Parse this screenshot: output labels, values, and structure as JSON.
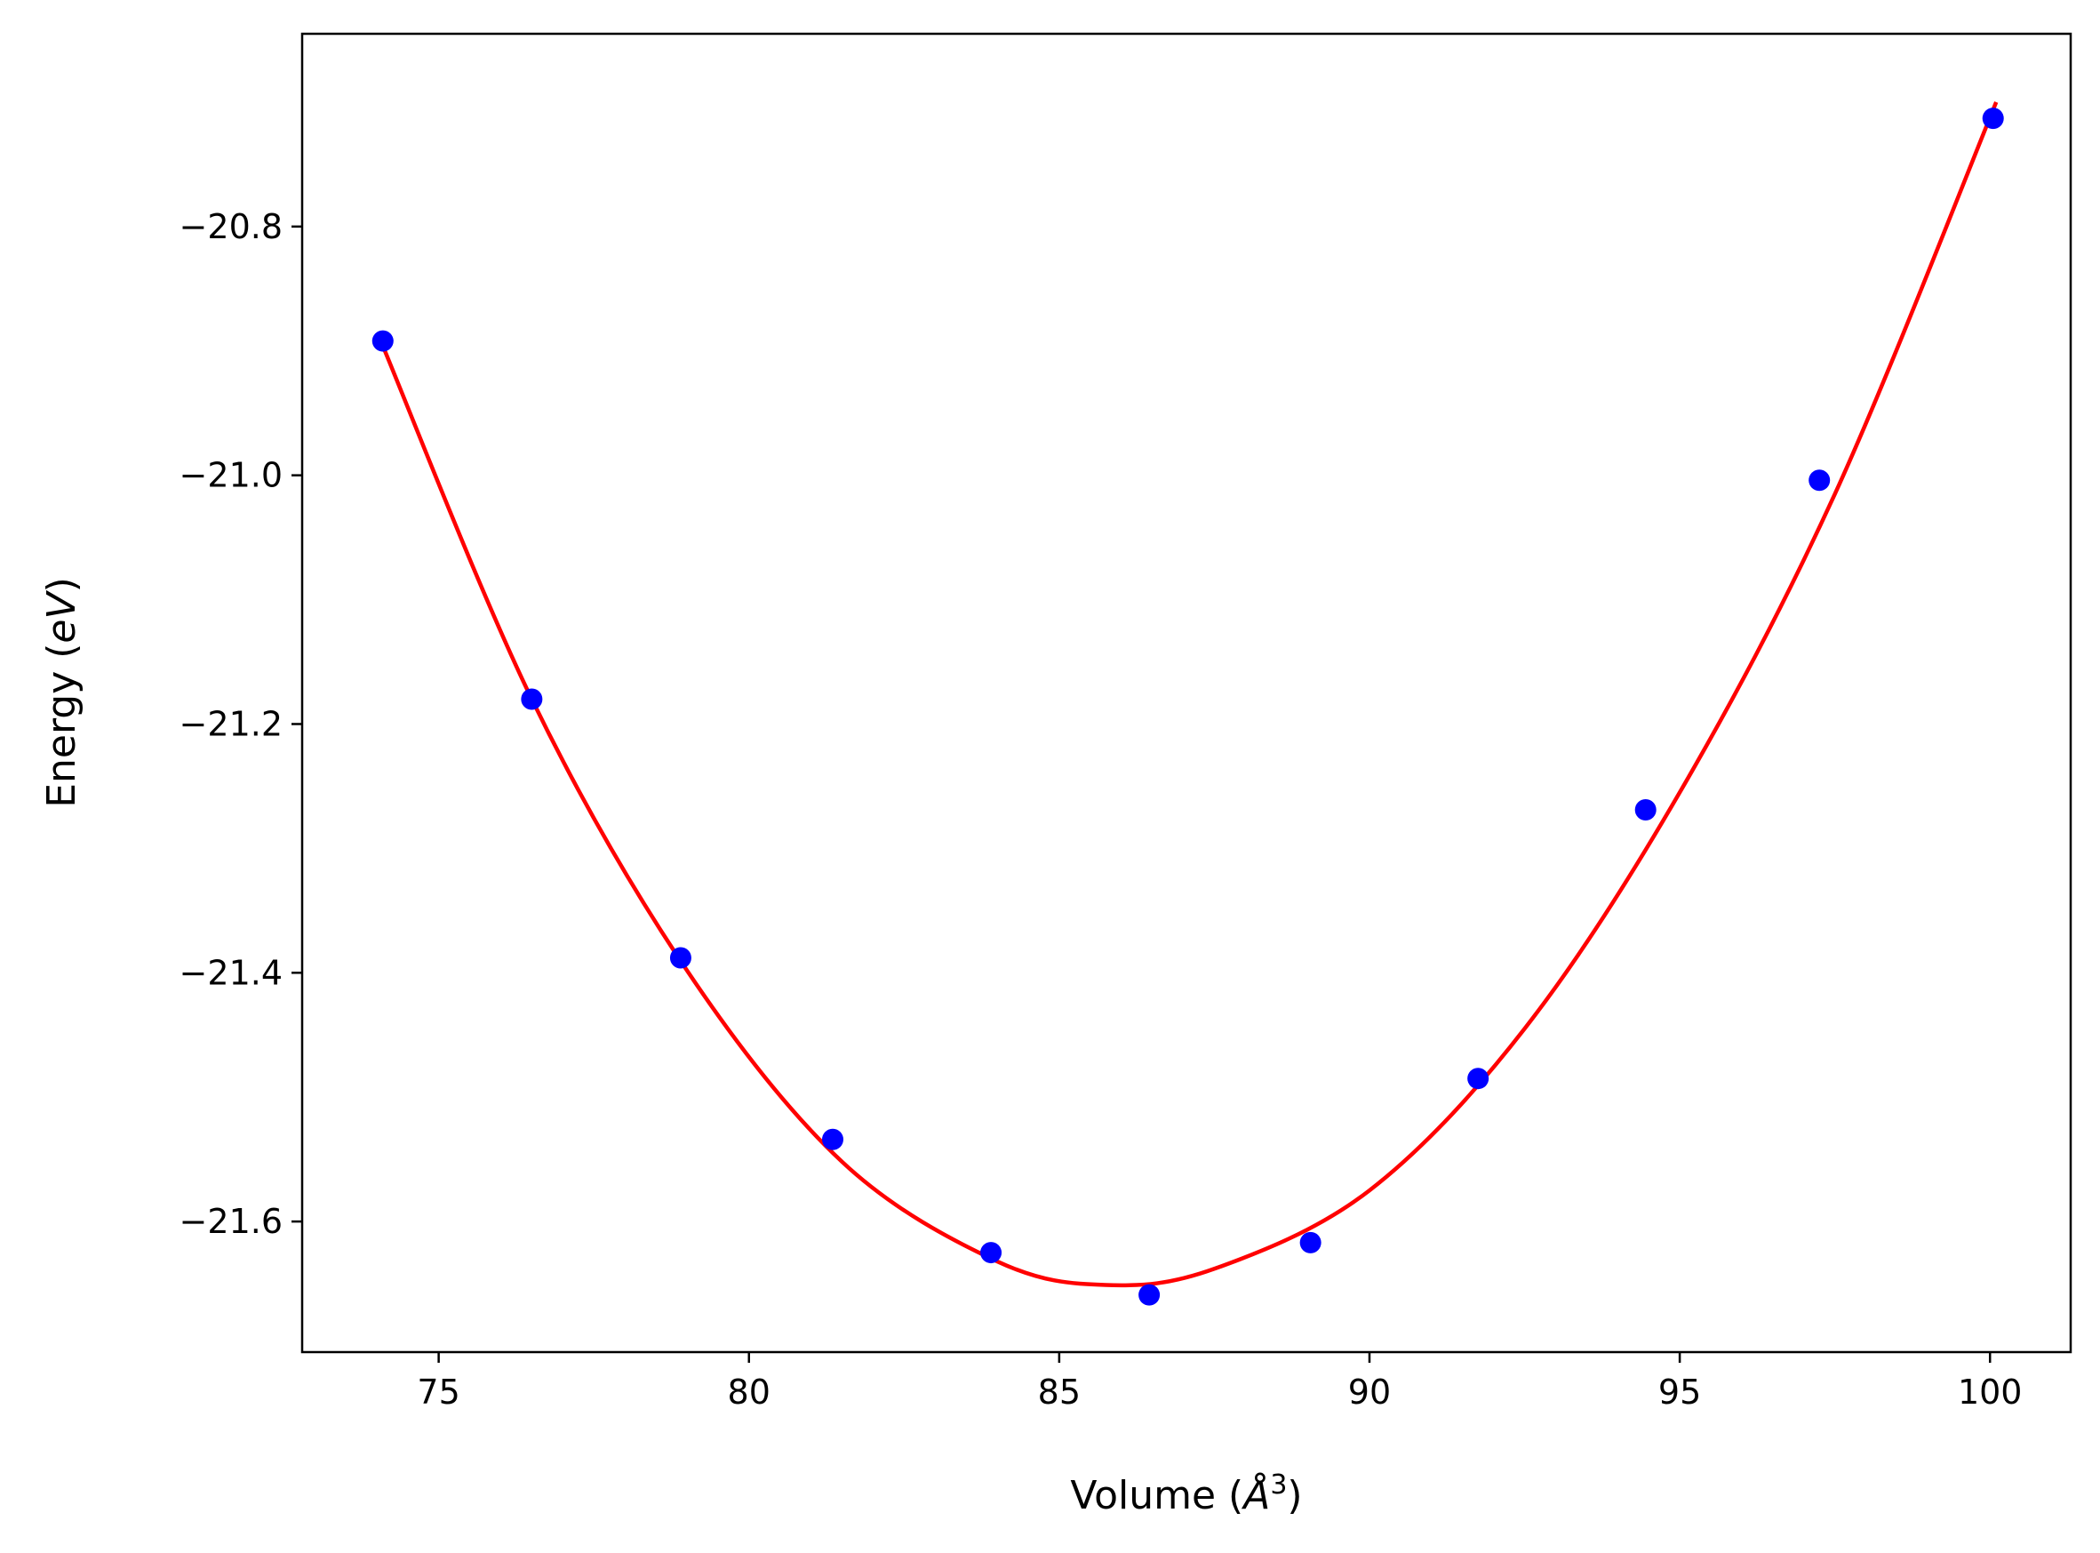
{
  "chart_data": {
    "type": "scatter",
    "title": "",
    "xlabel": "Volume ($\\AA^3$)",
    "ylabel": "Energy ($eV$)",
    "xlabel_parts": {
      "pre": "Volume (",
      "var": "Å",
      "sup": "3",
      "post": ")"
    },
    "ylabel_parts": {
      "pre": "Energy (",
      "var": "eV",
      "post": ")"
    },
    "xlim": [
      72.8,
      101.3
    ],
    "ylim": [
      -21.705,
      -20.645
    ],
    "xticks": [
      75,
      80,
      85,
      90,
      95,
      100
    ],
    "xtick_labels": [
      "75",
      "80",
      "85",
      "90",
      "95",
      "100"
    ],
    "yticks": [
      -20.8,
      -21.0,
      -21.2,
      -21.4,
      -21.6
    ],
    "ytick_labels": [
      "−20.8",
      "−21.0",
      "−21.2",
      "−21.4",
      "−21.6"
    ],
    "grid": false,
    "series": [
      {
        "kind": "points",
        "color": "#0000ff",
        "x": [
          74.1,
          76.5,
          78.9,
          81.35,
          83.9,
          86.45,
          89.05,
          91.75,
          94.45,
          97.25,
          100.05
        ],
        "y": [
          -20.892,
          -21.18,
          -21.388,
          -21.534,
          -21.625,
          -21.659,
          -21.617,
          -21.485,
          -21.269,
          -21.004,
          -20.713
        ]
      },
      {
        "kind": "fit-line",
        "color": "#ff0000",
        "x": [
          74.05,
          76.5,
          79.0,
          81.5,
          84.0,
          85.75,
          87.5,
          90.0,
          92.5,
          95.0,
          97.5,
          100.1
        ],
        "y": [
          -20.89,
          -21.18,
          -21.398,
          -21.552,
          -21.632,
          -21.651,
          -21.638,
          -21.575,
          -21.445,
          -21.255,
          -21.015,
          -20.7
        ]
      }
    ]
  }
}
